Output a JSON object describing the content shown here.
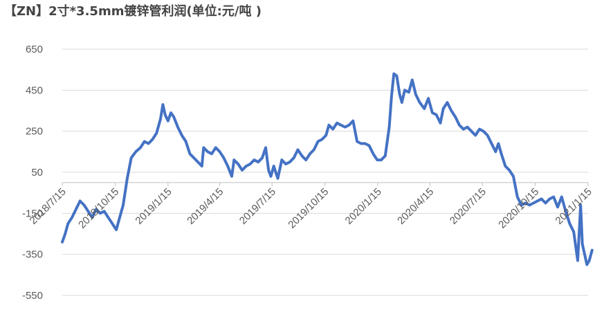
{
  "chart_data": {
    "type": "line",
    "title": "【ZN】2寸*3.5mm镀锌管利润(单位:元/吨 )",
    "xlabel": "",
    "ylabel": "",
    "ylim": [
      -550,
      650
    ],
    "yticks": [
      "650",
      "450",
      "250",
      "50",
      "-150",
      "-350",
      "-550"
    ],
    "ytick_values": [
      650,
      450,
      250,
      50,
      -150,
      -350,
      -550
    ],
    "xticks": [
      "2018/7/15",
      "2018/10/15",
      "2019/1/15",
      "2019/4/15",
      "2019/7/15",
      "2019/10/15",
      "2020/1/15",
      "2020/4/15",
      "2020/7/15",
      "2020/10/15",
      "2021/1/15"
    ],
    "grid": true,
    "legend": "none",
    "line_color": "#4472c4",
    "series": [
      {
        "name": "",
        "points": [
          [
            "2018/7/15",
            -290
          ],
          [
            "2018/7/20",
            -250
          ],
          [
            "2018/7/25",
            -200
          ],
          [
            "2018/8/1",
            -170
          ],
          [
            "2018/8/8",
            -130
          ],
          [
            "2018/8/15",
            -90
          ],
          [
            "2018/8/22",
            -110
          ],
          [
            "2018/8/29",
            -140
          ],
          [
            "2018/9/5",
            -170
          ],
          [
            "2018/9/12",
            -130
          ],
          [
            "2018/9/19",
            -150
          ],
          [
            "2018/9/26",
            -140
          ],
          [
            "2018/10/3",
            -170
          ],
          [
            "2018/10/10",
            -200
          ],
          [
            "2018/10/17",
            -230
          ],
          [
            "2018/10/22",
            -180
          ],
          [
            "2018/10/29",
            -110
          ],
          [
            "2018/11/5",
            20
          ],
          [
            "2018/11/12",
            120
          ],
          [
            "2018/11/20",
            150
          ],
          [
            "2018/11/28",
            170
          ],
          [
            "2018/12/5",
            200
          ],
          [
            "2018/12/12",
            190
          ],
          [
            "2018/12/19",
            210
          ],
          [
            "2018/12/26",
            240
          ],
          [
            "2019/1/2",
            310
          ],
          [
            "2019/1/6",
            380
          ],
          [
            "2019/1/10",
            330
          ],
          [
            "2019/1/15",
            300
          ],
          [
            "2019/1/20",
            340
          ],
          [
            "2019/1/25",
            320
          ],
          [
            "2019/2/1",
            270
          ],
          [
            "2019/2/8",
            230
          ],
          [
            "2019/2/15",
            200
          ],
          [
            "2019/2/22",
            140
          ],
          [
            "2019/3/1",
            120
          ],
          [
            "2019/3/8",
            100
          ],
          [
            "2019/3/15",
            80
          ],
          [
            "2019/3/18",
            170
          ],
          [
            "2019/3/25",
            150
          ],
          [
            "2019/4/1",
            140
          ],
          [
            "2019/4/8",
            170
          ],
          [
            "2019/4/15",
            150
          ],
          [
            "2019/4/22",
            120
          ],
          [
            "2019/4/29",
            80
          ],
          [
            "2019/5/6",
            30
          ],
          [
            "2019/5/10",
            110
          ],
          [
            "2019/5/17",
            90
          ],
          [
            "2019/5/24",
            60
          ],
          [
            "2019/5/31",
            80
          ],
          [
            "2019/6/7",
            90
          ],
          [
            "2019/6/14",
            110
          ],
          [
            "2019/6/21",
            100
          ],
          [
            "2019/6/28",
            120
          ],
          [
            "2019/7/4",
            170
          ],
          [
            "2019/7/9",
            60
          ],
          [
            "2019/7/13",
            30
          ],
          [
            "2019/7/18",
            80
          ],
          [
            "2019/7/25",
            20
          ],
          [
            "2019/8/1",
            110
          ],
          [
            "2019/8/8",
            90
          ],
          [
            "2019/8/15",
            100
          ],
          [
            "2019/8/22",
            120
          ],
          [
            "2019/8/29",
            160
          ],
          [
            "2019/9/5",
            130
          ],
          [
            "2019/9/12",
            110
          ],
          [
            "2019/9/19",
            140
          ],
          [
            "2019/9/26",
            160
          ],
          [
            "2019/10/3",
            200
          ],
          [
            "2019/10/10",
            210
          ],
          [
            "2019/10/17",
            230
          ],
          [
            "2019/10/22",
            280
          ],
          [
            "2019/10/29",
            260
          ],
          [
            "2019/11/5",
            290
          ],
          [
            "2019/11/12",
            280
          ],
          [
            "2019/11/19",
            270
          ],
          [
            "2019/11/26",
            280
          ],
          [
            "2019/12/3",
            300
          ],
          [
            "2019/12/10",
            200
          ],
          [
            "2019/12/17",
            190
          ],
          [
            "2019/12/24",
            190
          ],
          [
            "2019/12/31",
            180
          ],
          [
            "2020/1/7",
            140
          ],
          [
            "2020/1/14",
            110
          ],
          [
            "2020/1/21",
            110
          ],
          [
            "2020/1/28",
            130
          ],
          [
            "2020/2/4",
            270
          ],
          [
            "2020/2/8",
            420
          ],
          [
            "2020/2/12",
            530
          ],
          [
            "2020/2/17",
            520
          ],
          [
            "2020/2/22",
            430
          ],
          [
            "2020/2/26",
            390
          ],
          [
            "2020/3/2",
            450
          ],
          [
            "2020/3/9",
            440
          ],
          [
            "2020/3/15",
            500
          ],
          [
            "2020/3/21",
            430
          ],
          [
            "2020/3/28",
            390
          ],
          [
            "2020/4/5",
            360
          ],
          [
            "2020/4/12",
            410
          ],
          [
            "2020/4/19",
            340
          ],
          [
            "2020/4/26",
            330
          ],
          [
            "2020/5/3",
            290
          ],
          [
            "2020/5/8",
            360
          ],
          [
            "2020/5/15",
            390
          ],
          [
            "2020/5/22",
            350
          ],
          [
            "2020/5/29",
            320
          ],
          [
            "2020/6/5",
            280
          ],
          [
            "2020/6/12",
            260
          ],
          [
            "2020/6/19",
            270
          ],
          [
            "2020/6/26",
            250
          ],
          [
            "2020/7/3",
            230
          ],
          [
            "2020/7/10",
            260
          ],
          [
            "2020/7/17",
            250
          ],
          [
            "2020/7/24",
            230
          ],
          [
            "2020/7/31",
            190
          ],
          [
            "2020/8/7",
            150
          ],
          [
            "2020/8/12",
            190
          ],
          [
            "2020/8/17",
            140
          ],
          [
            "2020/8/24",
            80
          ],
          [
            "2020/8/31",
            60
          ],
          [
            "2020/9/7",
            30
          ],
          [
            "2020/9/14",
            -70
          ],
          [
            "2020/9/21",
            -110
          ],
          [
            "2020/9/28",
            -100
          ],
          [
            "2020/10/5",
            -110
          ],
          [
            "2020/10/12",
            -100
          ],
          [
            "2020/10/19",
            -90
          ],
          [
            "2020/10/26",
            -80
          ],
          [
            "2020/11/2",
            -100
          ],
          [
            "2020/11/9",
            -80
          ],
          [
            "2020/11/16",
            -70
          ],
          [
            "2020/11/23",
            -120
          ],
          [
            "2020/11/30",
            -70
          ],
          [
            "2020/12/7",
            -140
          ],
          [
            "2020/12/14",
            -200
          ],
          [
            "2020/12/21",
            -240
          ],
          [
            "2020/12/28",
            -380
          ],
          [
            "2021/1/2",
            -110
          ],
          [
            "2021/1/5",
            -300
          ],
          [
            "2021/1/9",
            -350
          ],
          [
            "2021/1/13",
            -400
          ],
          [
            "2021/1/17",
            -380
          ],
          [
            "2021/1/22",
            -330
          ]
        ]
      }
    ]
  }
}
